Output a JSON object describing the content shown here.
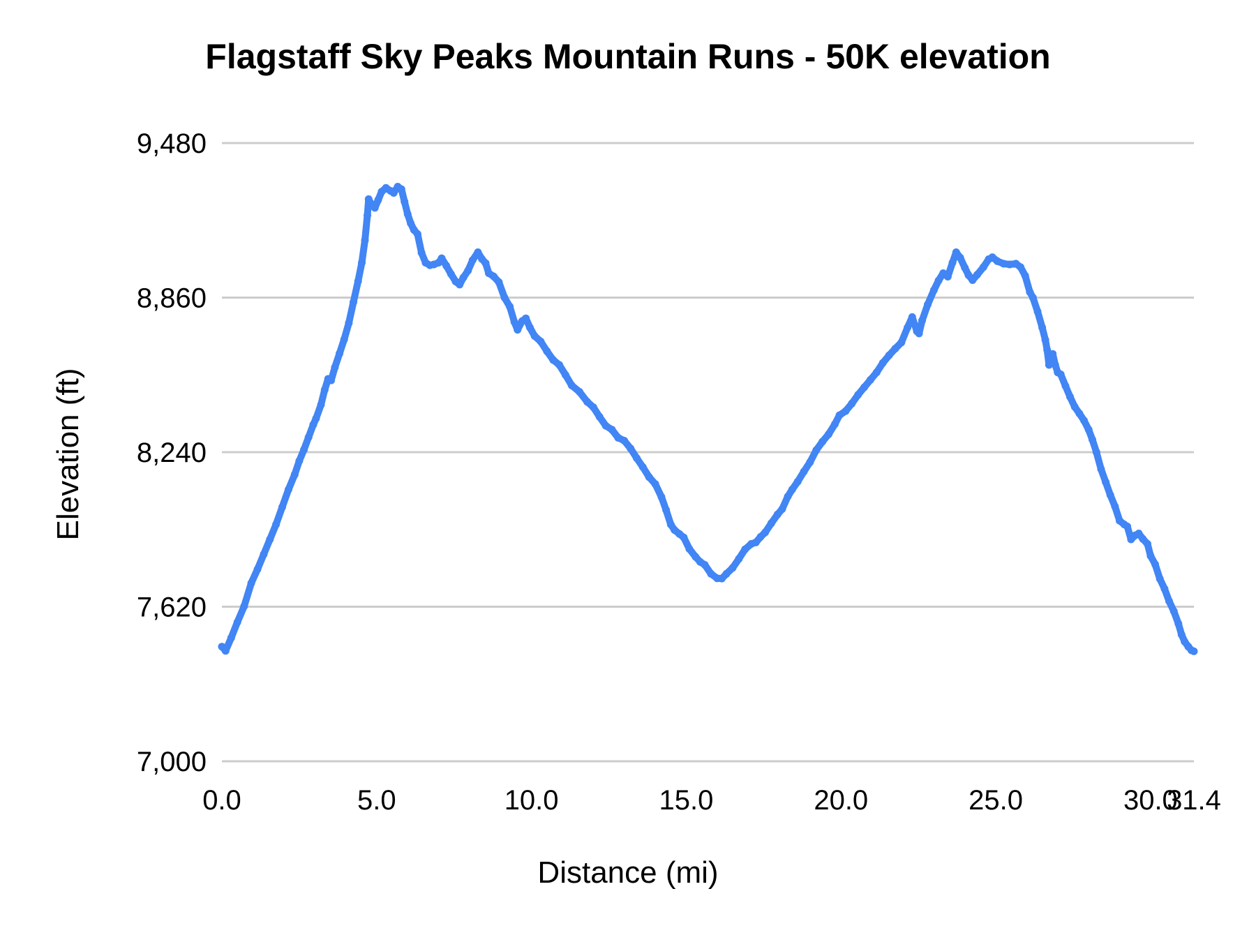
{
  "chart_data": {
    "type": "line",
    "title": "Flagstaff Sky Peaks Mountain Runs - 50K elevation",
    "xlabel": "Distance (mi)",
    "ylabel": "Elevation (ft)",
    "xlim": [
      0,
      31.4
    ],
    "ylim": [
      7000,
      9480
    ],
    "grid": true,
    "legend": "none",
    "series_color": "#4285f4",
    "gridline_color": "#cccccc",
    "x_ticks": [
      {
        "value": 0.0,
        "label": "0.0"
      },
      {
        "value": 5.0,
        "label": "5.0"
      },
      {
        "value": 10.0,
        "label": "10.0"
      },
      {
        "value": 15.0,
        "label": "15.0"
      },
      {
        "value": 20.0,
        "label": "20.0"
      },
      {
        "value": 25.0,
        "label": "25.0"
      },
      {
        "value": 30.0,
        "label": "30.0"
      },
      {
        "value": 31.4,
        "label": "31.4"
      }
    ],
    "y_ticks": [
      {
        "value": 7000,
        "label": "7,000"
      },
      {
        "value": 7620,
        "label": "7,620"
      },
      {
        "value": 8240,
        "label": "8,240"
      },
      {
        "value": 8860,
        "label": "8,860"
      },
      {
        "value": 9480,
        "label": "9,480"
      }
    ],
    "series": [
      {
        "name": "50K elevation",
        "points": [
          [
            0.0,
            7460
          ],
          [
            0.12,
            7443
          ],
          [
            0.3,
            7495
          ],
          [
            0.5,
            7558
          ],
          [
            0.72,
            7622
          ],
          [
            0.95,
            7715
          ],
          [
            1.15,
            7770
          ],
          [
            1.35,
            7830
          ],
          [
            1.55,
            7890
          ],
          [
            1.75,
            7950
          ],
          [
            1.95,
            8020
          ],
          [
            2.15,
            8090
          ],
          [
            2.35,
            8150
          ],
          [
            2.5,
            8205
          ],
          [
            2.65,
            8250
          ],
          [
            2.8,
            8300
          ],
          [
            2.95,
            8350
          ],
          [
            3.04,
            8375
          ],
          [
            3.2,
            8430
          ],
          [
            3.32,
            8490
          ],
          [
            3.43,
            8534
          ],
          [
            3.53,
            8528
          ],
          [
            3.65,
            8580
          ],
          [
            3.8,
            8636
          ],
          [
            3.95,
            8692
          ],
          [
            4.1,
            8758
          ],
          [
            4.25,
            8842
          ],
          [
            4.4,
            8926
          ],
          [
            4.52,
            9000
          ],
          [
            4.62,
            9090
          ],
          [
            4.7,
            9190
          ],
          [
            4.74,
            9255
          ],
          [
            4.8,
            9240
          ],
          [
            4.94,
            9220
          ],
          [
            5.05,
            9252
          ],
          [
            5.16,
            9285
          ],
          [
            5.3,
            9300
          ],
          [
            5.45,
            9288
          ],
          [
            5.55,
            9280
          ],
          [
            5.68,
            9305
          ],
          [
            5.8,
            9295
          ],
          [
            5.9,
            9245
          ],
          [
            6.0,
            9195
          ],
          [
            6.1,
            9158
          ],
          [
            6.2,
            9132
          ],
          [
            6.32,
            9115
          ],
          [
            6.45,
            9040
          ],
          [
            6.58,
            9000
          ],
          [
            6.72,
            8990
          ],
          [
            6.85,
            8993
          ],
          [
            7.0,
            9000
          ],
          [
            7.1,
            9018
          ],
          [
            7.25,
            8988
          ],
          [
            7.4,
            8955
          ],
          [
            7.55,
            8925
          ],
          [
            7.68,
            8912
          ],
          [
            7.8,
            8940
          ],
          [
            7.95,
            8968
          ],
          [
            8.1,
            9010
          ],
          [
            8.27,
            9042
          ],
          [
            8.4,
            9015
          ],
          [
            8.52,
            8998
          ],
          [
            8.62,
            8958
          ],
          [
            8.78,
            8945
          ],
          [
            8.95,
            8922
          ],
          [
            9.13,
            8860
          ],
          [
            9.3,
            8824
          ],
          [
            9.45,
            8762
          ],
          [
            9.55,
            8731
          ],
          [
            9.7,
            8766
          ],
          [
            9.82,
            8777
          ],
          [
            9.95,
            8740
          ],
          [
            10.1,
            8706
          ],
          [
            10.3,
            8684
          ],
          [
            10.5,
            8645
          ],
          [
            10.7,
            8610
          ],
          [
            10.9,
            8590
          ],
          [
            11.1,
            8550
          ],
          [
            11.3,
            8508
          ],
          [
            11.55,
            8482
          ],
          [
            11.8,
            8442
          ],
          [
            12.0,
            8420
          ],
          [
            12.2,
            8382
          ],
          [
            12.4,
            8346
          ],
          [
            12.6,
            8330
          ],
          [
            12.8,
            8298
          ],
          [
            13.0,
            8286
          ],
          [
            13.2,
            8255
          ],
          [
            13.4,
            8216
          ],
          [
            13.6,
            8180
          ],
          [
            13.8,
            8140
          ],
          [
            14.0,
            8112
          ],
          [
            14.2,
            8060
          ],
          [
            14.35,
            8008
          ],
          [
            14.5,
            7950
          ],
          [
            14.62,
            7928
          ],
          [
            14.78,
            7912
          ],
          [
            14.92,
            7898
          ],
          [
            15.1,
            7852
          ],
          [
            15.3,
            7820
          ],
          [
            15.45,
            7800
          ],
          [
            15.6,
            7788
          ],
          [
            15.8,
            7752
          ],
          [
            16.0,
            7734
          ],
          [
            16.15,
            7733
          ],
          [
            16.3,
            7752
          ],
          [
            16.5,
            7776
          ],
          [
            16.7,
            7812
          ],
          [
            16.9,
            7850
          ],
          [
            17.1,
            7872
          ],
          [
            17.25,
            7878
          ],
          [
            17.4,
            7900
          ],
          [
            17.55,
            7918
          ],
          [
            17.75,
            7955
          ],
          [
            17.95,
            7990
          ],
          [
            18.1,
            8012
          ],
          [
            18.28,
            8062
          ],
          [
            18.42,
            8090
          ],
          [
            18.6,
            8122
          ],
          [
            18.8,
            8162
          ],
          [
            19.0,
            8200
          ],
          [
            19.2,
            8248
          ],
          [
            19.4,
            8282
          ],
          [
            19.6,
            8312
          ],
          [
            19.8,
            8352
          ],
          [
            19.95,
            8388
          ],
          [
            20.15,
            8405
          ],
          [
            20.35,
            8435
          ],
          [
            20.55,
            8470
          ],
          [
            20.75,
            8500
          ],
          [
            20.95,
            8530
          ],
          [
            21.15,
            8560
          ],
          [
            21.35,
            8598
          ],
          [
            21.55,
            8628
          ],
          [
            21.75,
            8655
          ],
          [
            21.95,
            8680
          ],
          [
            22.15,
            8740
          ],
          [
            22.3,
            8782
          ],
          [
            22.45,
            8725
          ],
          [
            22.52,
            8716
          ],
          [
            22.62,
            8768
          ],
          [
            22.8,
            8832
          ],
          [
            23.0,
            8890
          ],
          [
            23.15,
            8928
          ],
          [
            23.3,
            8958
          ],
          [
            23.45,
            8944
          ],
          [
            23.6,
            9000
          ],
          [
            23.72,
            9042
          ],
          [
            23.85,
            9020
          ],
          [
            24.0,
            8980
          ],
          [
            24.12,
            8950
          ],
          [
            24.25,
            8930
          ],
          [
            24.4,
            8952
          ],
          [
            24.6,
            8982
          ],
          [
            24.77,
            9014
          ],
          [
            24.89,
            9022
          ],
          [
            25.05,
            9006
          ],
          [
            25.25,
            8996
          ],
          [
            25.45,
            8993
          ],
          [
            25.65,
            8996
          ],
          [
            25.8,
            8982
          ],
          [
            25.95,
            8948
          ],
          [
            26.1,
            8882
          ],
          [
            26.2,
            8860
          ],
          [
            26.35,
            8804
          ],
          [
            26.5,
            8740
          ],
          [
            26.6,
            8690
          ],
          [
            26.66,
            8650
          ],
          [
            26.72,
            8590
          ],
          [
            26.84,
            8634
          ],
          [
            26.92,
            8590
          ],
          [
            27.0,
            8560
          ],
          [
            27.1,
            8552
          ],
          [
            27.25,
            8506
          ],
          [
            27.4,
            8462
          ],
          [
            27.55,
            8422
          ],
          [
            27.7,
            8395
          ],
          [
            27.85,
            8367
          ],
          [
            28.0,
            8330
          ],
          [
            28.12,
            8290
          ],
          [
            28.25,
            8240
          ],
          [
            28.4,
            8172
          ],
          [
            28.55,
            8120
          ],
          [
            28.7,
            8068
          ],
          [
            28.85,
            8022
          ],
          [
            29.0,
            7965
          ],
          [
            29.15,
            7950
          ],
          [
            29.25,
            7942
          ],
          [
            29.37,
            7890
          ],
          [
            29.5,
            7906
          ],
          [
            29.62,
            7914
          ],
          [
            29.75,
            7892
          ],
          [
            29.9,
            7872
          ],
          [
            30.0,
            7824
          ],
          [
            30.15,
            7790
          ],
          [
            30.3,
            7732
          ],
          [
            30.45,
            7692
          ],
          [
            30.6,
            7642
          ],
          [
            30.75,
            7602
          ],
          [
            30.9,
            7552
          ],
          [
            31.0,
            7508
          ],
          [
            31.1,
            7480
          ],
          [
            31.22,
            7460
          ],
          [
            31.32,
            7445
          ],
          [
            31.4,
            7441
          ]
        ]
      }
    ]
  }
}
